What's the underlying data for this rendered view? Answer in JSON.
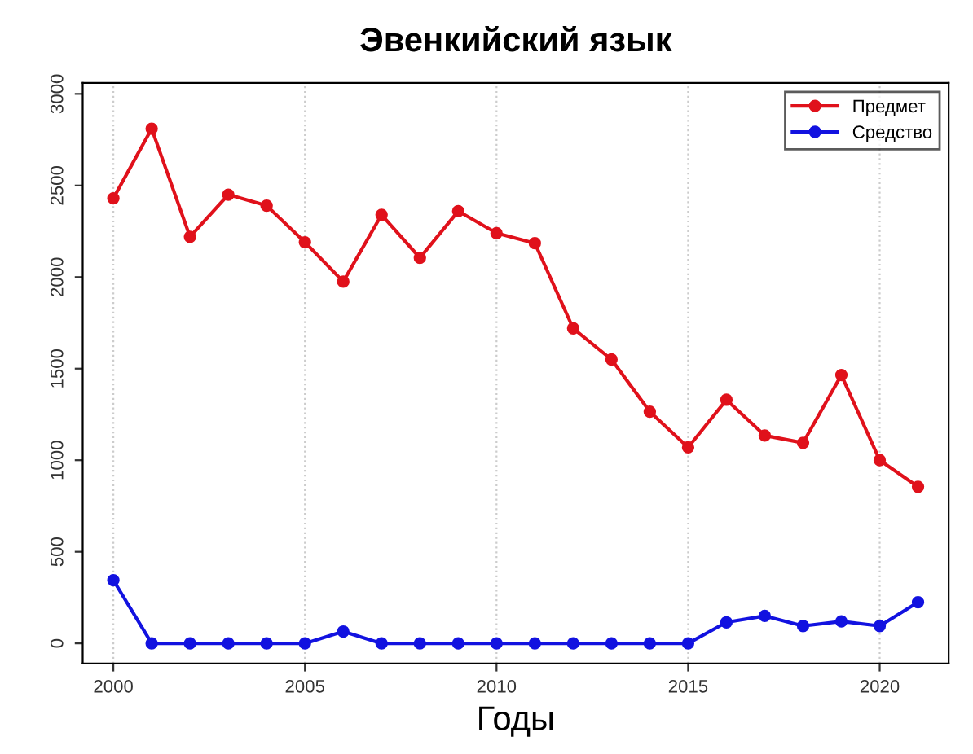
{
  "chart_data": {
    "type": "line",
    "title": "Эвенкийский язык",
    "xlabel": "Годы",
    "x": [
      2000,
      2001,
      2002,
      2003,
      2004,
      2005,
      2006,
      2007,
      2008,
      2009,
      2010,
      2011,
      2012,
      2013,
      2014,
      2015,
      2016,
      2017,
      2018,
      2019,
      2020,
      2021
    ],
    "series": [
      {
        "name": "Предмет",
        "color": "#e0111b",
        "values": [
          2430,
          2810,
          2220,
          2450,
          2390,
          2190,
          1975,
          2340,
          2105,
          2360,
          2240,
          2185,
          1720,
          1550,
          1265,
          1070,
          1330,
          1135,
          1095,
          1465,
          1000,
          855
        ]
      },
      {
        "name": "Средство",
        "color": "#1212e0",
        "values": [
          345,
          0,
          0,
          0,
          0,
          0,
          65,
          0,
          0,
          0,
          0,
          0,
          0,
          0,
          0,
          0,
          115,
          150,
          95,
          120,
          95,
          225
        ]
      }
    ],
    "xlim": [
      1999.2,
      2021.8
    ],
    "ylim": [
      -110,
      3060
    ],
    "xticks": [
      2000,
      2005,
      2010,
      2015,
      2020
    ],
    "yticks": [
      0,
      500,
      1000,
      1500,
      2000,
      2500,
      3000
    ],
    "grid": "x",
    "legend": "top right",
    "marker": "circle",
    "line_style": "solid"
  }
}
